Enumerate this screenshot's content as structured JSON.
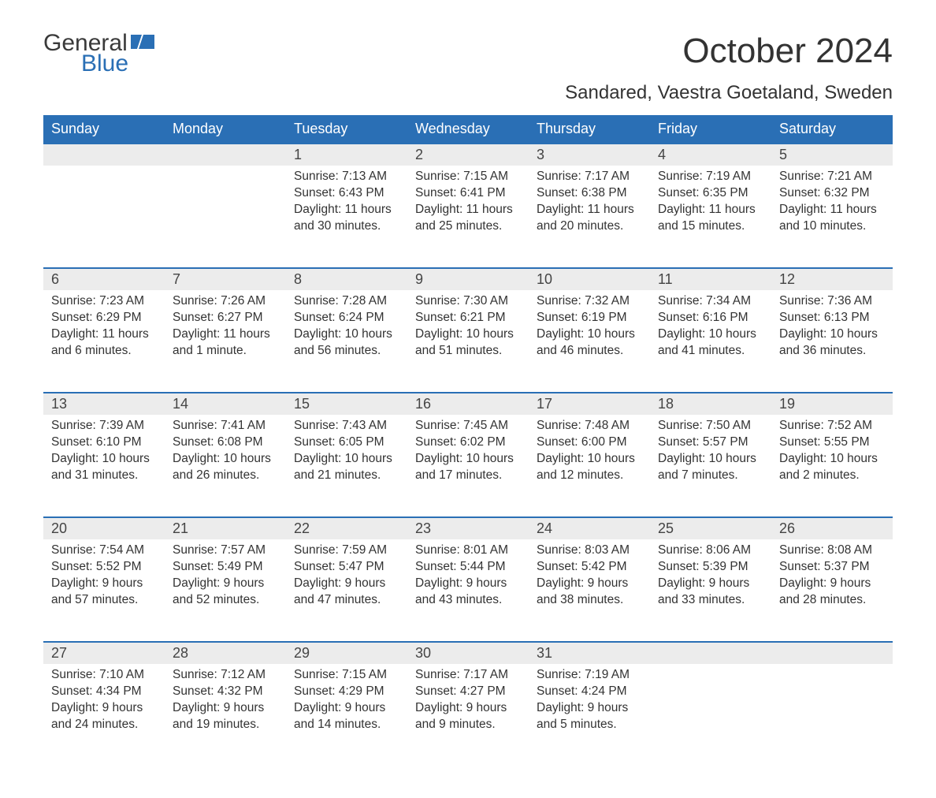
{
  "brand": {
    "general": "General",
    "blue": "Blue"
  },
  "title": "October 2024",
  "subtitle": "Sandared, Vaestra Goetaland, Sweden",
  "colors": {
    "header_bg": "#2a6fb5",
    "header_text": "#ffffff",
    "daynum_bg": "#ececec",
    "row_border": "#2a6fb5",
    "body_text": "#333333",
    "page_bg": "#ffffff",
    "logo_blue": "#2a6fb5",
    "logo_gray": "#3a3a3a"
  },
  "layout": {
    "title_fontsize": 44,
    "subtitle_fontsize": 24,
    "header_fontsize": 18,
    "daynum_fontsize": 18,
    "body_fontsize": 15.5,
    "columns": 7,
    "rows": 5
  },
  "weekdays": [
    "Sunday",
    "Monday",
    "Tuesday",
    "Wednesday",
    "Thursday",
    "Friday",
    "Saturday"
  ],
  "weeks": [
    [
      {
        "n": "",
        "sunrise": "",
        "sunset": "",
        "daylight": "",
        "empty": true
      },
      {
        "n": "",
        "sunrise": "",
        "sunset": "",
        "daylight": "",
        "empty": true
      },
      {
        "n": "1",
        "sunrise": "Sunrise: 7:13 AM",
        "sunset": "Sunset: 6:43 PM",
        "daylight": "Daylight: 11 hours and 30 minutes."
      },
      {
        "n": "2",
        "sunrise": "Sunrise: 7:15 AM",
        "sunset": "Sunset: 6:41 PM",
        "daylight": "Daylight: 11 hours and 25 minutes."
      },
      {
        "n": "3",
        "sunrise": "Sunrise: 7:17 AM",
        "sunset": "Sunset: 6:38 PM",
        "daylight": "Daylight: 11 hours and 20 minutes."
      },
      {
        "n": "4",
        "sunrise": "Sunrise: 7:19 AM",
        "sunset": "Sunset: 6:35 PM",
        "daylight": "Daylight: 11 hours and 15 minutes."
      },
      {
        "n": "5",
        "sunrise": "Sunrise: 7:21 AM",
        "sunset": "Sunset: 6:32 PM",
        "daylight": "Daylight: 11 hours and 10 minutes."
      }
    ],
    [
      {
        "n": "6",
        "sunrise": "Sunrise: 7:23 AM",
        "sunset": "Sunset: 6:29 PM",
        "daylight": "Daylight: 11 hours and 6 minutes."
      },
      {
        "n": "7",
        "sunrise": "Sunrise: 7:26 AM",
        "sunset": "Sunset: 6:27 PM",
        "daylight": "Daylight: 11 hours and 1 minute."
      },
      {
        "n": "8",
        "sunrise": "Sunrise: 7:28 AM",
        "sunset": "Sunset: 6:24 PM",
        "daylight": "Daylight: 10 hours and 56 minutes."
      },
      {
        "n": "9",
        "sunrise": "Sunrise: 7:30 AM",
        "sunset": "Sunset: 6:21 PM",
        "daylight": "Daylight: 10 hours and 51 minutes."
      },
      {
        "n": "10",
        "sunrise": "Sunrise: 7:32 AM",
        "sunset": "Sunset: 6:19 PM",
        "daylight": "Daylight: 10 hours and 46 minutes."
      },
      {
        "n": "11",
        "sunrise": "Sunrise: 7:34 AM",
        "sunset": "Sunset: 6:16 PM",
        "daylight": "Daylight: 10 hours and 41 minutes."
      },
      {
        "n": "12",
        "sunrise": "Sunrise: 7:36 AM",
        "sunset": "Sunset: 6:13 PM",
        "daylight": "Daylight: 10 hours and 36 minutes."
      }
    ],
    [
      {
        "n": "13",
        "sunrise": "Sunrise: 7:39 AM",
        "sunset": "Sunset: 6:10 PM",
        "daylight": "Daylight: 10 hours and 31 minutes."
      },
      {
        "n": "14",
        "sunrise": "Sunrise: 7:41 AM",
        "sunset": "Sunset: 6:08 PM",
        "daylight": "Daylight: 10 hours and 26 minutes."
      },
      {
        "n": "15",
        "sunrise": "Sunrise: 7:43 AM",
        "sunset": "Sunset: 6:05 PM",
        "daylight": "Daylight: 10 hours and 21 minutes."
      },
      {
        "n": "16",
        "sunrise": "Sunrise: 7:45 AM",
        "sunset": "Sunset: 6:02 PM",
        "daylight": "Daylight: 10 hours and 17 minutes."
      },
      {
        "n": "17",
        "sunrise": "Sunrise: 7:48 AM",
        "sunset": "Sunset: 6:00 PM",
        "daylight": "Daylight: 10 hours and 12 minutes."
      },
      {
        "n": "18",
        "sunrise": "Sunrise: 7:50 AM",
        "sunset": "Sunset: 5:57 PM",
        "daylight": "Daylight: 10 hours and 7 minutes."
      },
      {
        "n": "19",
        "sunrise": "Sunrise: 7:52 AM",
        "sunset": "Sunset: 5:55 PM",
        "daylight": "Daylight: 10 hours and 2 minutes."
      }
    ],
    [
      {
        "n": "20",
        "sunrise": "Sunrise: 7:54 AM",
        "sunset": "Sunset: 5:52 PM",
        "daylight": "Daylight: 9 hours and 57 minutes."
      },
      {
        "n": "21",
        "sunrise": "Sunrise: 7:57 AM",
        "sunset": "Sunset: 5:49 PM",
        "daylight": "Daylight: 9 hours and 52 minutes."
      },
      {
        "n": "22",
        "sunrise": "Sunrise: 7:59 AM",
        "sunset": "Sunset: 5:47 PM",
        "daylight": "Daylight: 9 hours and 47 minutes."
      },
      {
        "n": "23",
        "sunrise": "Sunrise: 8:01 AM",
        "sunset": "Sunset: 5:44 PM",
        "daylight": "Daylight: 9 hours and 43 minutes."
      },
      {
        "n": "24",
        "sunrise": "Sunrise: 8:03 AM",
        "sunset": "Sunset: 5:42 PM",
        "daylight": "Daylight: 9 hours and 38 minutes."
      },
      {
        "n": "25",
        "sunrise": "Sunrise: 8:06 AM",
        "sunset": "Sunset: 5:39 PM",
        "daylight": "Daylight: 9 hours and 33 minutes."
      },
      {
        "n": "26",
        "sunrise": "Sunrise: 8:08 AM",
        "sunset": "Sunset: 5:37 PM",
        "daylight": "Daylight: 9 hours and 28 minutes."
      }
    ],
    [
      {
        "n": "27",
        "sunrise": "Sunrise: 7:10 AM",
        "sunset": "Sunset: 4:34 PM",
        "daylight": "Daylight: 9 hours and 24 minutes."
      },
      {
        "n": "28",
        "sunrise": "Sunrise: 7:12 AM",
        "sunset": "Sunset: 4:32 PM",
        "daylight": "Daylight: 9 hours and 19 minutes."
      },
      {
        "n": "29",
        "sunrise": "Sunrise: 7:15 AM",
        "sunset": "Sunset: 4:29 PM",
        "daylight": "Daylight: 9 hours and 14 minutes."
      },
      {
        "n": "30",
        "sunrise": "Sunrise: 7:17 AM",
        "sunset": "Sunset: 4:27 PM",
        "daylight": "Daylight: 9 hours and 9 minutes."
      },
      {
        "n": "31",
        "sunrise": "Sunrise: 7:19 AM",
        "sunset": "Sunset: 4:24 PM",
        "daylight": "Daylight: 9 hours and 5 minutes."
      },
      {
        "n": "",
        "sunrise": "",
        "sunset": "",
        "daylight": "",
        "empty": true
      },
      {
        "n": "",
        "sunrise": "",
        "sunset": "",
        "daylight": "",
        "empty": true
      }
    ]
  ]
}
